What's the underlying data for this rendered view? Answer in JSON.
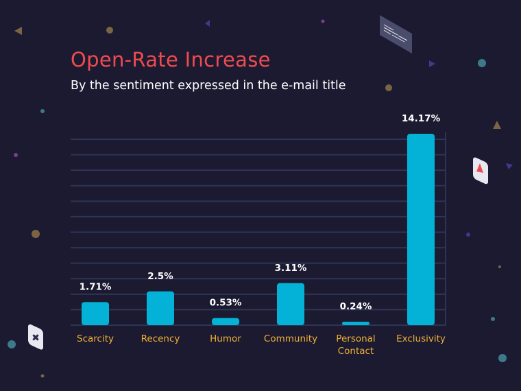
{
  "chart_data": {
    "type": "bar",
    "title": "Open-Rate Increase",
    "subtitle": "By the sentiment expressed in the e-mail title",
    "categories": [
      "Scarcity",
      "Recency",
      "Humor",
      "Community",
      "Personal Contact",
      "Exclusivity"
    ],
    "category_lines": [
      [
        "Scarcity"
      ],
      [
        "Recency"
      ],
      [
        "Humor"
      ],
      [
        "Community"
      ],
      [
        "Personal",
        "Contact"
      ],
      [
        "Exclusivity"
      ]
    ],
    "values": [
      1.71,
      2.5,
      0.53,
      3.11,
      0.24,
      14.17
    ],
    "data_labels": [
      "1.71%",
      "2.5%",
      "0.53%",
      "3.11%",
      "0.24%",
      "14.17%"
    ],
    "xlabel": "",
    "ylabel": "",
    "ylim": [
      0,
      14.17
    ],
    "grid": true,
    "colors": {
      "bar": "#03b2d6",
      "title": "#ef4b4f",
      "category_label": "#f2b035",
      "grid": "#2d3556",
      "background": "#1b1a31",
      "data_label": "#ffffff"
    }
  }
}
